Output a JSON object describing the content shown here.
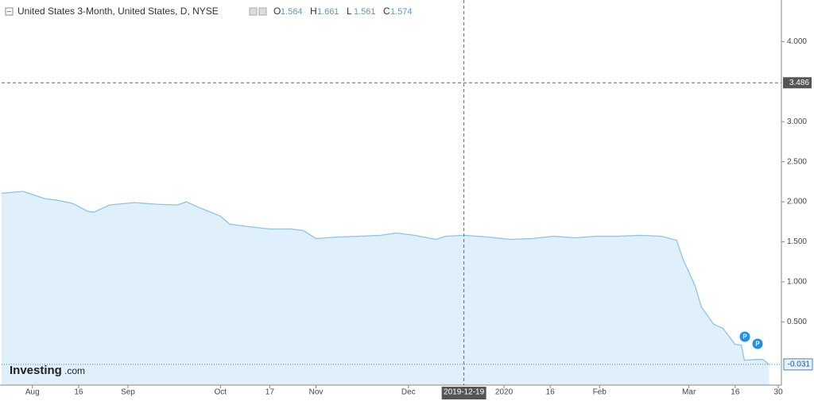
{
  "chart_data": {
    "type": "line",
    "title": "United States 3-Month, United States, D, NYSE",
    "ohlc": [
      {
        "label": "O",
        "value": 1.564
      },
      {
        "label": "H",
        "value": 1.661
      },
      {
        "label": "L",
        "value": 1.561
      },
      {
        "label": "C",
        "value": 1.574
      }
    ],
    "x": [
      "2019-07-22",
      "2019-07-29",
      "2019-08-05",
      "2019-08-09",
      "2019-08-14",
      "2019-08-19",
      "2019-08-21",
      "2019-08-26",
      "2019-09-03",
      "2019-09-10",
      "2019-09-17",
      "2019-09-20",
      "2019-09-24",
      "2019-10-01",
      "2019-10-04",
      "2019-10-10",
      "2019-10-17",
      "2019-10-24",
      "2019-10-28",
      "2019-11-01",
      "2019-11-08",
      "2019-11-15",
      "2019-11-22",
      "2019-11-27",
      "2019-12-03",
      "2019-12-10",
      "2019-12-13",
      "2019-12-19",
      "2019-12-27",
      "2020-01-03",
      "2020-01-10",
      "2020-01-17",
      "2020-01-24",
      "2020-01-31",
      "2020-02-07",
      "2020-02-14",
      "2020-02-21",
      "2020-02-26",
      "2020-02-28",
      "2020-03-03",
      "2020-03-05",
      "2020-03-09",
      "2020-03-12",
      "2020-03-16",
      "2020-03-18",
      "2020-03-19",
      "2020-03-23",
      "2020-03-25",
      "2020-03-27"
    ],
    "series": [
      {
        "name": "United States 3-Month",
        "color": "#8cc3ea",
        "values": [
          2.106,
          2.13,
          2.04,
          2.02,
          1.98,
          1.88,
          1.87,
          1.96,
          1.99,
          1.97,
          1.96,
          2.0,
          1.93,
          1.82,
          1.72,
          1.69,
          1.66,
          1.66,
          1.64,
          1.54,
          1.56,
          1.57,
          1.58,
          1.61,
          1.58,
          1.53,
          1.57,
          1.58,
          1.56,
          1.53,
          1.54,
          1.57,
          1.55,
          1.57,
          1.57,
          1.58,
          1.57,
          1.52,
          1.29,
          0.95,
          0.69,
          0.47,
          0.42,
          0.22,
          0.21,
          0.02,
          0.03,
          0.03,
          -0.031
        ]
      }
    ],
    "xlim": [
      "2019-07-22",
      "2020-03-31"
    ],
    "xticks": [
      {
        "value": "2019-08-01",
        "label": "Aug"
      },
      {
        "value": "2019-08-16",
        "label": "16"
      },
      {
        "value": "2019-09-01",
        "label": "Sep"
      },
      {
        "value": "2019-10-01",
        "label": "Oct"
      },
      {
        "value": "2019-10-17",
        "label": "17"
      },
      {
        "value": "2019-11-01",
        "label": "Nov"
      },
      {
        "value": "2019-12-01",
        "label": "Dec"
      },
      {
        "value": "2020-01-01",
        "label": "2020"
      },
      {
        "value": "2020-01-16",
        "label": "16"
      },
      {
        "value": "2020-02-01",
        "label": "Feb"
      },
      {
        "value": "2020-03-01",
        "label": "Mar"
      },
      {
        "value": "2020-03-16",
        "label": "16"
      },
      {
        "value": "2020-03-30",
        "label": "30"
      }
    ],
    "ylim": [
      -0.29,
      4.52
    ],
    "yticks": [
      {
        "value": 4,
        "label": "4.000"
      },
      {
        "value": 3,
        "label": "3.000"
      },
      {
        "value": 2.5,
        "label": "2.500"
      },
      {
        "value": 2,
        "label": "2.000"
      },
      {
        "value": 1.5,
        "label": "1.500"
      },
      {
        "value": 1,
        "label": "1.000"
      },
      {
        "value": 0.5,
        "label": "0.500"
      }
    ],
    "grid": false,
    "crosshair": {
      "x": "2019-12-19",
      "y": 3.486
    },
    "last_price": -0.031,
    "event_markers": [
      "P",
      "P"
    ],
    "watermark": [
      "Investing",
      ".com"
    ]
  }
}
